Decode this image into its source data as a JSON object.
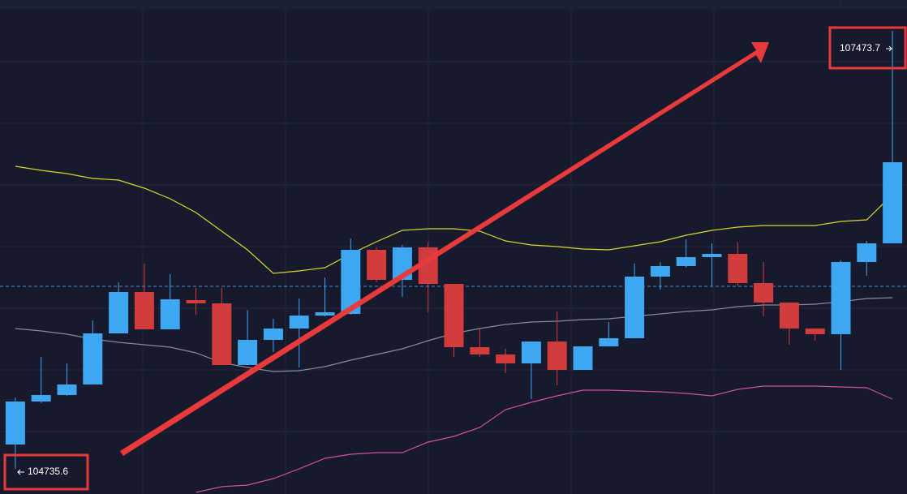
{
  "chart_data": {
    "type": "candlestick",
    "categories": [
      null,
      null,
      null,
      null,
      null,
      null,
      null,
      null,
      null,
      null,
      null,
      null,
      null,
      null,
      null,
      null,
      null,
      null,
      null,
      null,
      null,
      null,
      null,
      null,
      null,
      null,
      null,
      null,
      null,
      null,
      null,
      null,
      null,
      null,
      null
    ],
    "open": [
      104887.7,
      105156.4,
      105197.0,
      105262.9,
      105582.3,
      105840.9,
      105607.6,
      105790.2,
      105769.9,
      105384.6,
      105541.7,
      105612.7,
      105693.8,
      105704.0,
      106104.5,
      105916.9,
      106119.7,
      105891.6,
      105496.1,
      105450.5,
      105394.7,
      105531.6,
      105354.1,
      105501.2,
      105551.9,
      105937.2,
      106003.1,
      106058.9,
      106079.2,
      105896.6,
      105775.0,
      105612.7,
      105577.2,
      106028.5,
      106145.1
    ],
    "high": [
      105181.8,
      105435.3,
      105394.7,
      105663.4,
      105901.7,
      106018.3,
      105952.4,
      105866.2,
      105866.2,
      105729.3,
      105673.6,
      105800.3,
      105932.1,
      106175.5,
      106119.7,
      106134.9,
      106155.2,
      105891.6,
      105617.8,
      105486.0,
      105531.6,
      105719.2,
      105501.2,
      105653.3,
      106018.3,
      106028.5,
      106170.4,
      106145.1,
      106155.2,
      106028.5,
      105775.0,
      105612.7,
      106038.6,
      106160.3,
      107473.7
    ],
    "low": [
      104735.6,
      105146.3,
      105191.9,
      105262.9,
      105582.3,
      105607.6,
      105607.6,
      105698.9,
      105384.6,
      105384.6,
      105465.7,
      105369.4,
      105688.8,
      105698.9,
      105901.7,
      105810.4,
      105714.1,
      105435.3,
      105435.3,
      105333.9,
      105171.6,
      105257.8,
      105354.1,
      105501.2,
      105551.9,
      105856.1,
      105993.0,
      105876.4,
      105881.4,
      105688.8,
      105511.3,
      105536.7,
      105354.1,
      105942.3,
      106145.1
    ],
    "close": [
      105156.4,
      105197.0,
      105262.9,
      105582.3,
      105840.9,
      105607.6,
      105795.2,
      105769.9,
      105384.6,
      105541.7,
      105612.7,
      105693.8,
      105714.1,
      106104.5,
      105916.9,
      106119.7,
      105891.6,
      105496.1,
      105450.5,
      105394.7,
      105531.6,
      105354.1,
      105501.2,
      105551.9,
      105937.2,
      106003.1,
      106058.9,
      106079.2,
      105896.6,
      105775.0,
      105612.7,
      105577.2,
      106028.5,
      106145.1,
      106652.1
    ],
    "up_color": "#3ea7f2",
    "down_color": "#d33c3c",
    "series": [
      {
        "color": "#d8d62c",
        "values": [
          106626.7,
          106601.4,
          106581.1,
          106550.7,
          106540.5,
          106489.8,
          106423.9,
          106337.7,
          106221.1,
          106104.5,
          105957.5,
          105972.7,
          105993.0,
          106079.2,
          106155.2,
          106226.2,
          106236.3,
          106236.3,
          106221.1,
          106160.3,
          106134.9,
          106124.8,
          106109.6,
          106104.5,
          106129.9,
          106155.2,
          106195.8,
          106226.2,
          106246.5,
          106256.6,
          106256.6,
          106256.6,
          106282.0,
          106292.1,
          106449.3
        ]
      },
      {
        "color": "#868a99",
        "values": [
          105612.7,
          105597.5,
          105577.2,
          105546.8,
          105526.5,
          105511.3,
          105496.1,
          105460.6,
          105399.8,
          105369.4,
          105344.0,
          105349.1,
          105374.4,
          105415.0,
          105450.5,
          105486.0,
          105536.7,
          105582.3,
          105612.7,
          105638.1,
          105653.3,
          105658.3,
          105668.5,
          105673.6,
          105688.8,
          105704.0,
          105719.2,
          105729.3,
          105749.6,
          105759.7,
          105759.7,
          105764.8,
          105780.0,
          105800.3,
          105805.4
        ]
      },
      {
        "color": "#d04fa6",
        "values": [
          null,
          null,
          null,
          null,
          null,
          null,
          null,
          104588.6,
          104624.1,
          104634.2,
          104674.8,
          104735.6,
          104801.5,
          104826.9,
          104837.0,
          104837.0,
          104902.9,
          104938.4,
          104994.2,
          105105.7,
          105151.3,
          105191.9,
          105227.4,
          105227.4,
          105222.3,
          105217.3,
          105207.1,
          105191.9,
          105232.5,
          105252.7,
          105252.7,
          105252.7,
          105247.7,
          105242.6,
          105171.6
        ]
      }
    ],
    "price_line": 105876.4,
    "price_line_color": "#4a8fd0",
    "ylim": [
      104578.4,
      107666.1
    ]
  }
}
